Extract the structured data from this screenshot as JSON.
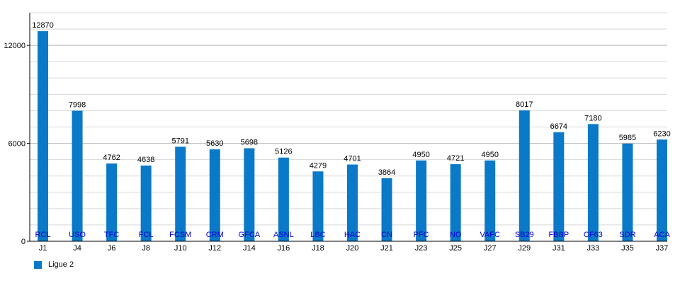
{
  "colors": {
    "bar": "#0a79c8",
    "team_label": "#0000cc",
    "grid": "#d8d8d8",
    "major_grid": "#b4b4b4",
    "axis": "#000000"
  },
  "chart_data": {
    "type": "bar",
    "categories": [
      "J1",
      "J4",
      "J6",
      "J8",
      "J10",
      "J12",
      "J14",
      "J16",
      "J18",
      "J20",
      "J21",
      "J23",
      "J25",
      "J27",
      "J29",
      "J31",
      "J33",
      "J35",
      "J37"
    ],
    "team_labels": [
      "RCL",
      "USO",
      "TFC",
      "FCL",
      "FCSM",
      "CRM",
      "GFCA",
      "ASNL",
      "LBC",
      "HAC",
      "CN",
      "PFC",
      "NO",
      "VAFC",
      "SB29",
      "FBBP",
      "CF63",
      "SDR",
      "ACA"
    ],
    "series": [
      {
        "name": "Ligue 2",
        "values": [
          12870,
          7998,
          4762,
          4638,
          5791,
          5630,
          5698,
          5126,
          4279,
          4701,
          3864,
          4950,
          4721,
          4950,
          8017,
          6674,
          7180,
          5985,
          6230
        ]
      }
    ],
    "ylim": [
      0,
      14000
    ],
    "yticks": [
      0,
      6000,
      12000
    ],
    "minor_grid_step": 1000,
    "grid": true,
    "legend": "bottom-left"
  }
}
